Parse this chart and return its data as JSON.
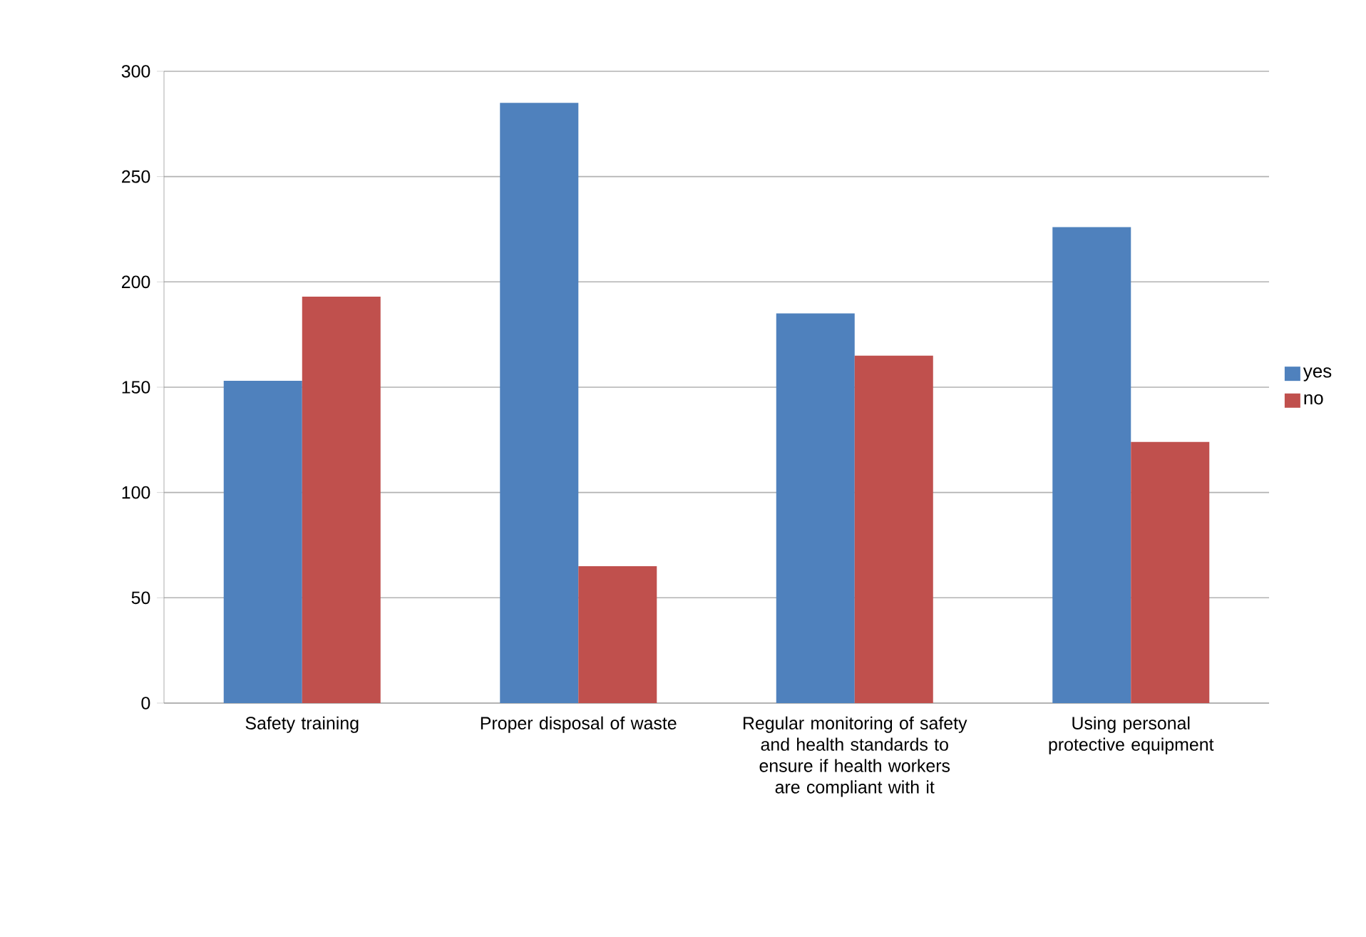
{
  "chart_data": {
    "type": "bar",
    "categories": [
      "Safety training",
      "Proper disposal of waste",
      "Regular monitoring of safety and health standards to ensure if health workers are compliant with it",
      "Using personal protective equipment"
    ],
    "series": [
      {
        "name": "yes",
        "color": "#4f81bd",
        "values": [
          153,
          285,
          185,
          226
        ]
      },
      {
        "name": "no",
        "color": "#c0504d",
        "values": [
          193,
          65,
          165,
          124
        ]
      }
    ],
    "ylim": [
      0,
      300
    ],
    "yticks": [
      0,
      50,
      100,
      150,
      200,
      250,
      300
    ],
    "grid": "y",
    "legend": "right"
  }
}
